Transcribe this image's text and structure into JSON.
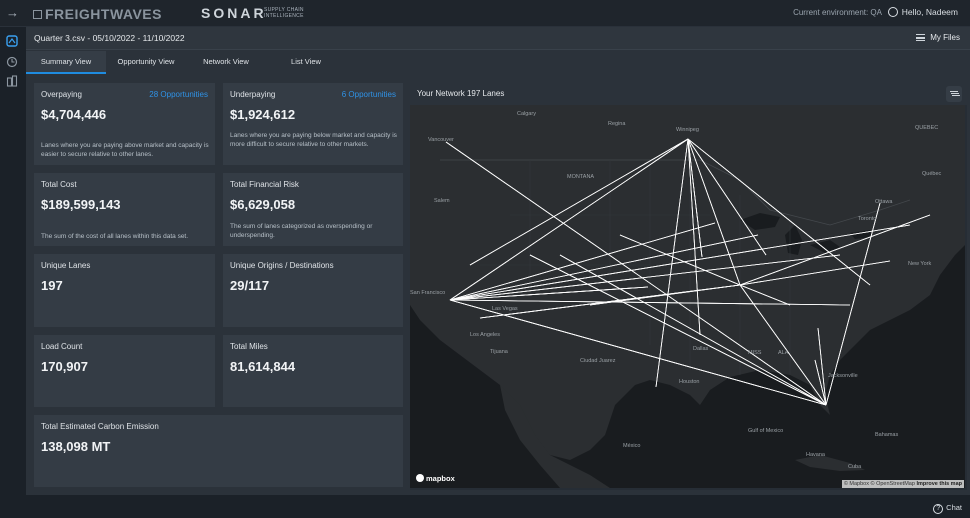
{
  "topbar": {
    "brand": "FREIGHTWAVES",
    "product": "SONAR",
    "product_sub": "SUPPLY CHAIN INTELLIGENCE",
    "environment": "Current environment: QA",
    "greeting": "Hello, Nadeem"
  },
  "file": {
    "title": "Quarter 3.csv - 05/10/2022 - 11/10/2022",
    "my_files": "My Files"
  },
  "tabs": [
    {
      "label": "Summary View",
      "active": true
    },
    {
      "label": "Opportunity View",
      "active": false
    },
    {
      "label": "Network View",
      "active": false
    },
    {
      "label": "List View",
      "active": false
    }
  ],
  "cards": {
    "overpaying": {
      "label": "Overpaying",
      "opportunities": "28 Opportunities",
      "value": "$4,704,446",
      "desc": "Lanes where you are paying above market and capacity is easier to secure relative to other lanes."
    },
    "underpaying": {
      "label": "Underpaying",
      "opportunities": "6 Opportunities",
      "value": "$1,924,612",
      "desc": "Lanes where you are paying below market and capacity is more difficult to secure relative to other markets."
    },
    "total_cost": {
      "label": "Total Cost",
      "value": "$189,599,143",
      "desc": "The sum of the cost of all lanes within this data set."
    },
    "financial_risk": {
      "label": "Total Financial Risk",
      "value": "$6,629,058",
      "desc": "The sum of lanes categorized as overspending or underspending."
    },
    "unique_lanes": {
      "label": "Unique Lanes",
      "value": "197"
    },
    "origins_destinations": {
      "label": "Unique Origins / Destinations",
      "value": "29/117"
    },
    "load_count": {
      "label": "Load Count",
      "value": "170,907"
    },
    "total_miles": {
      "label": "Total Miles",
      "value": "81,614,844"
    },
    "carbon": {
      "label": "Total Estimated Carbon Emission",
      "value": "138,098 MT"
    }
  },
  "map": {
    "title": "Your Network 197 Lanes",
    "logo": "mapbox",
    "attribution_1": "© Mapbox © OpenStreetMap",
    "attribution_2": "Improve this map",
    "places": [
      "Calgary",
      "Regina",
      "Winnipeg",
      "QUEBEC",
      "Vancouver",
      "MONTANA",
      "Québec",
      "Ottawa",
      "Salem",
      "Toronto",
      "New York",
      "San Francisco",
      "Las Vegas",
      "Los Angeles",
      "Tijuana",
      "Ciudad Juarez",
      "Dallas",
      "Houston",
      "MISS",
      "ALA",
      "Jacksonville",
      "Gulf of Mexico",
      "Bahamas",
      "Havana",
      "Cuba",
      "México"
    ]
  },
  "chat": {
    "label": "Chat"
  }
}
